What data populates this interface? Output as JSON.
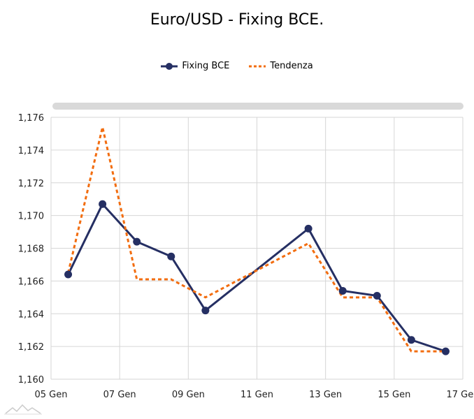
{
  "chart_data": {
    "type": "line",
    "title": "Euro/USD - Fixing BCE.",
    "xlabel": "",
    "ylabel": "",
    "x_ticks": [
      "05 Gen",
      "07 Gen",
      "09 Gen",
      "11 Gen",
      "13 Gen",
      "15 Gen",
      "17 Gen"
    ],
    "y_ticks": [
      "1,160",
      "1,162",
      "1,164",
      "1,166",
      "1,168",
      "1,170",
      "1,172",
      "1,174",
      "1,176"
    ],
    "ylim": [
      1.16,
      1.176
    ],
    "xlim_days": [
      5,
      17
    ],
    "x": [
      5.5,
      6.5,
      7.5,
      8.5,
      9.5,
      12.5,
      13.5,
      14.5,
      15.5,
      16.5
    ],
    "series": [
      {
        "name": "Fixing BCE",
        "color": "#252f63",
        "style": "solid-markers",
        "values": [
          1.1664,
          1.1707,
          1.1684,
          1.1675,
          1.1642,
          1.1692,
          1.1654,
          1.1651,
          1.1624,
          1.1617
        ]
      },
      {
        "name": "Tendenza",
        "color": "#f26d10",
        "style": "dotted",
        "values": [
          1.1665,
          1.1754,
          1.1661,
          1.1661,
          1.165,
          1.1683,
          1.165,
          1.165,
          1.1617,
          1.1617
        ]
      }
    ],
    "grid": true,
    "legend_position": "top-center"
  }
}
